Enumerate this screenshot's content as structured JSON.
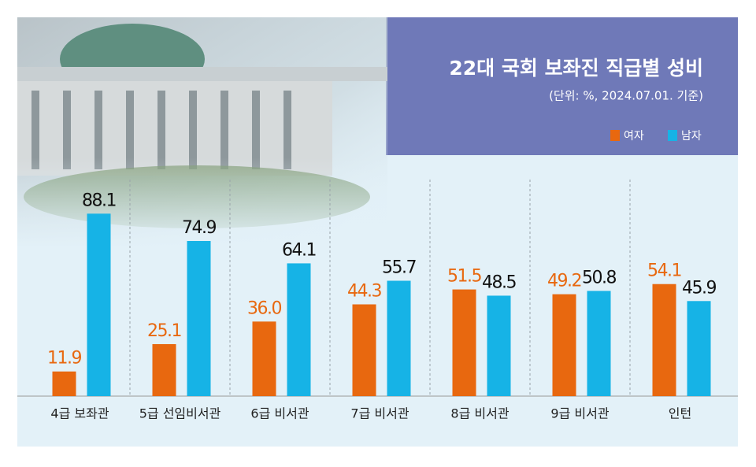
{
  "chart_data": {
    "type": "bar",
    "title": "22대 국회 보좌진 직급별 성비",
    "subtitle": "(단위: %, 2024.07.01. 기준)",
    "categories": [
      "4급 보좌관",
      "5급 선임비서관",
      "6급 비서관",
      "7급 비서관",
      "8급 비서관",
      "9급 비서관",
      "인턴"
    ],
    "series": [
      {
        "name": "여자",
        "color": "#e8680f",
        "values": [
          11.9,
          25.1,
          36.0,
          44.3,
          51.5,
          49.2,
          54.1
        ],
        "value_labels": [
          "11.9",
          "25.1",
          "36.0",
          "44.3",
          "51.5",
          "49.2",
          "54.1"
        ]
      },
      {
        "name": "남자",
        "color": "#16b3e6",
        "values": [
          88.1,
          74.9,
          64.1,
          55.7,
          48.5,
          50.8,
          45.9
        ]
      }
    ],
    "ylim": [
      0,
      100
    ]
  }
}
